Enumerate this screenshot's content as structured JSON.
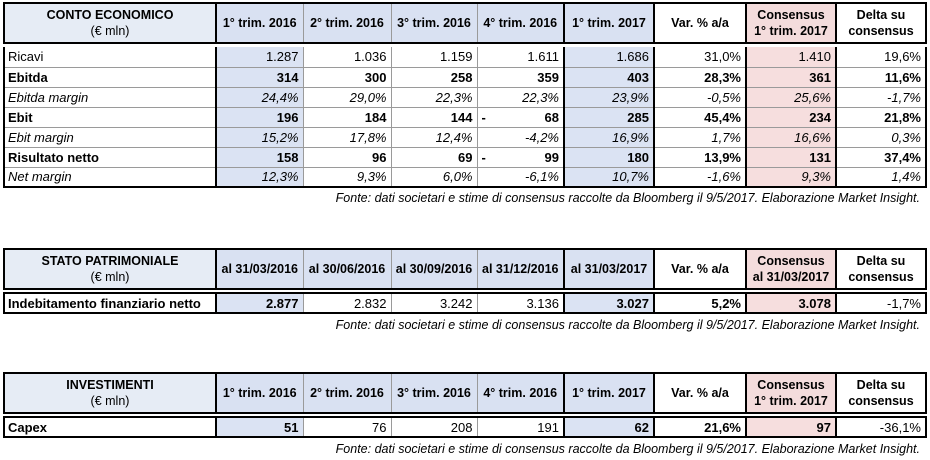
{
  "t1": {
    "title": "CONTO ECONOMICO",
    "unit": "(€ mln)",
    "headers": [
      "1° trim. 2016",
      "2° trim. 2016",
      "3° trim. 2016",
      "4° trim. 2016",
      "1° trim. 2017",
      "Var. % a/a"
    ],
    "cons_l1": "Consensus",
    "cons_l2": "1° trim. 2017",
    "delta_l1": "Delta su",
    "delta_l2": "consensus",
    "rows": [
      {
        "label": "Ricavi",
        "v": [
          "1.287",
          "1.036",
          "1.159",
          "1.611",
          "1.686",
          "31,0%",
          "1.410",
          "19,6%"
        ]
      },
      {
        "label": "Ebitda",
        "v": [
          "314",
          "300",
          "258",
          "359",
          "403",
          "28,3%",
          "361",
          "11,6%"
        ]
      },
      {
        "label": "Ebitda margin",
        "v": [
          "24,4%",
          "29,0%",
          "22,3%",
          "22,3%",
          "23,9%",
          "-0,5%",
          "25,6%",
          "-1,7%"
        ]
      },
      {
        "label": "Ebit",
        "v": [
          "196",
          "184",
          "144",
          "68",
          "285",
          "45,4%",
          "234",
          "21,8%"
        ],
        "neg4": "-"
      },
      {
        "label": "Ebit margin",
        "v": [
          "15,2%",
          "17,8%",
          "12,4%",
          "-4,2%",
          "16,9%",
          "1,7%",
          "16,6%",
          "0,3%"
        ]
      },
      {
        "label": "Risultato netto",
        "v": [
          "158",
          "96",
          "69",
          "99",
          "180",
          "13,9%",
          "131",
          "37,4%"
        ],
        "neg4": "-"
      },
      {
        "label": "Net margin",
        "v": [
          "12,3%",
          "9,3%",
          "6,0%",
          "-6,1%",
          "10,7%",
          "-1,6%",
          "9,3%",
          "1,4%"
        ]
      }
    ],
    "note": "Fonte: dati societari e stime di consensus raccolte da Bloomberg il 9/5/2017. Elaborazione Market Insight."
  },
  "t2": {
    "title": "STATO PATRIMONIALE",
    "unit": "(€ mln)",
    "headers": [
      "al 31/03/2016",
      "al 30/06/2016",
      "al 30/09/2016",
      "al 31/12/2016",
      "al 31/03/2017",
      "Var. % a/a"
    ],
    "cons_l1": "Consensus",
    "cons_l2": "al 31/03/2017",
    "delta_l1": "Delta su",
    "delta_l2": "consensus",
    "rows": [
      {
        "label": "Indebitamento finanziario netto",
        "v": [
          "2.877",
          "2.832",
          "3.242",
          "3.136",
          "3.027",
          "5,2%",
          "3.078",
          "-1,7%"
        ]
      }
    ],
    "note": "Fonte: dati societari e stime di consensus raccolte da Bloomberg il 9/5/2017. Elaborazione Market Insight."
  },
  "t3": {
    "title": "INVESTIMENTI",
    "unit": "(€ mln)",
    "headers": [
      "1° trim. 2016",
      "2° trim. 2016",
      "3° trim. 2016",
      "4° trim. 2016",
      "1° trim. 2017",
      "Var. % a/a"
    ],
    "cons_l1": "Consensus",
    "cons_l2": "1° trim. 2017",
    "delta_l1": "Delta su",
    "delta_l2": "consensus",
    "rows": [
      {
        "label": "Capex",
        "v": [
          "51",
          "76",
          "208",
          "191",
          "62",
          "21,6%",
          "97",
          "-36,1%"
        ]
      }
    ],
    "note": "Fonte: dati societari e stime di consensus raccolte da Bloomberg il 9/5/2017. Elaborazione Market Insight."
  }
}
